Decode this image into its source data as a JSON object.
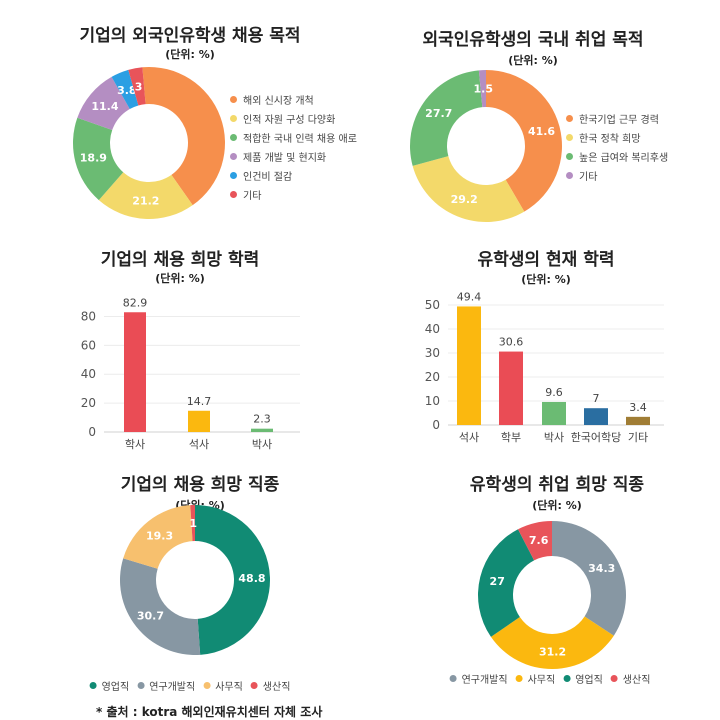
{
  "source_note": "* 출처 : kotra 해외인재유치센터 자체 조사",
  "chart_data": [
    {
      "id": "c1",
      "type": "pie",
      "title": "기업의 외국인유학생 채용 목적",
      "subtitle": "(단위: %)",
      "labels": [
        "해외 신시장 개척",
        "인적 자원 구성 다양화",
        "적합한 국내 인력 채용 애로",
        "제품 개발 및 현지화",
        "인건비 절감",
        "기타"
      ],
      "values": [
        41.6,
        21.2,
        18.9,
        11.4,
        3.8,
        3
      ],
      "value_labels": [
        "",
        "21.2",
        "18.9",
        "11.4",
        "3.8",
        "3"
      ],
      "colors": [
        "#f68f4c",
        "#f3d96a",
        "#6bbb73",
        "#b48ec2",
        "#2b9fe3",
        "#e8545a"
      ],
      "legend": "right"
    },
    {
      "id": "c2",
      "type": "pie",
      "title": "외국인유학생의 국내 취업 목적",
      "subtitle": "(단위: %)",
      "labels": [
        "한국기업 근무 경력",
        "한국 정착 희망",
        "높은 급여와 복리후생",
        "기타"
      ],
      "values": [
        41.6,
        29.2,
        27.7,
        1.5
      ],
      "value_labels": [
        "41.6",
        "29.2",
        "27.7",
        "1.5"
      ],
      "colors": [
        "#f68f4c",
        "#f3d96a",
        "#6bbb73",
        "#b48ec2"
      ],
      "legend": "right"
    },
    {
      "id": "c3",
      "type": "bar",
      "title": "기업의 채용 희망 학력",
      "subtitle": "(단위: %)",
      "categories": [
        "학사",
        "석사",
        "박사"
      ],
      "values": [
        82.9,
        14.7,
        2.3
      ],
      "value_labels": [
        "82.9",
        "14.7",
        "2.3"
      ],
      "colors": [
        "#ea4c55",
        "#fbb80f",
        "#6bbb73"
      ],
      "ylim": [
        0,
        90
      ],
      "yticks": [
        "0",
        "20",
        "40",
        "60",
        "80"
      ],
      "grid": true
    },
    {
      "id": "c4",
      "type": "bar",
      "title": "유학생의 현재 학력",
      "subtitle": "(단위: %)",
      "categories": [
        "석사",
        "학부",
        "박사",
        "한국어학당",
        "기타"
      ],
      "values": [
        49.4,
        30.6,
        9.6,
        7,
        3.4
      ],
      "value_labels": [
        "49.4",
        "30.6",
        "9.6",
        "7",
        "3.4"
      ],
      "colors": [
        "#fbb80f",
        "#ea4c55",
        "#6bbb73",
        "#2a6ea1",
        "#a07d35"
      ],
      "ylim": [
        0,
        55
      ],
      "yticks": [
        "0",
        "10",
        "20",
        "30",
        "40",
        "50"
      ],
      "grid": true
    },
    {
      "id": "c5",
      "type": "pie",
      "title": "기업의 채용 희망 직종",
      "subtitle": "(단위: %)",
      "labels": [
        "영업직",
        "연구개발직",
        "사무직",
        "생산직"
      ],
      "values": [
        48.8,
        30.7,
        19.3,
        1
      ],
      "value_labels": [
        "48.8",
        "30.7",
        "19.3",
        "1"
      ],
      "colors": [
        "#118b74",
        "#8797a3",
        "#f7c06e",
        "#e8545a"
      ],
      "legend": "bottom"
    },
    {
      "id": "c6",
      "type": "pie",
      "title": "유학생의 취업 희망 직종",
      "subtitle": "(단위: %)",
      "labels": [
        "연구개발직",
        "사무직",
        "영업직",
        "생산직"
      ],
      "values": [
        34.3,
        31.2,
        27,
        7.6
      ],
      "value_labels": [
        "34.3",
        "31.2",
        "27",
        "7.6"
      ],
      "colors": [
        "#8797a3",
        "#fbb80f",
        "#118b74",
        "#e8545a"
      ],
      "legend": "bottom"
    }
  ]
}
